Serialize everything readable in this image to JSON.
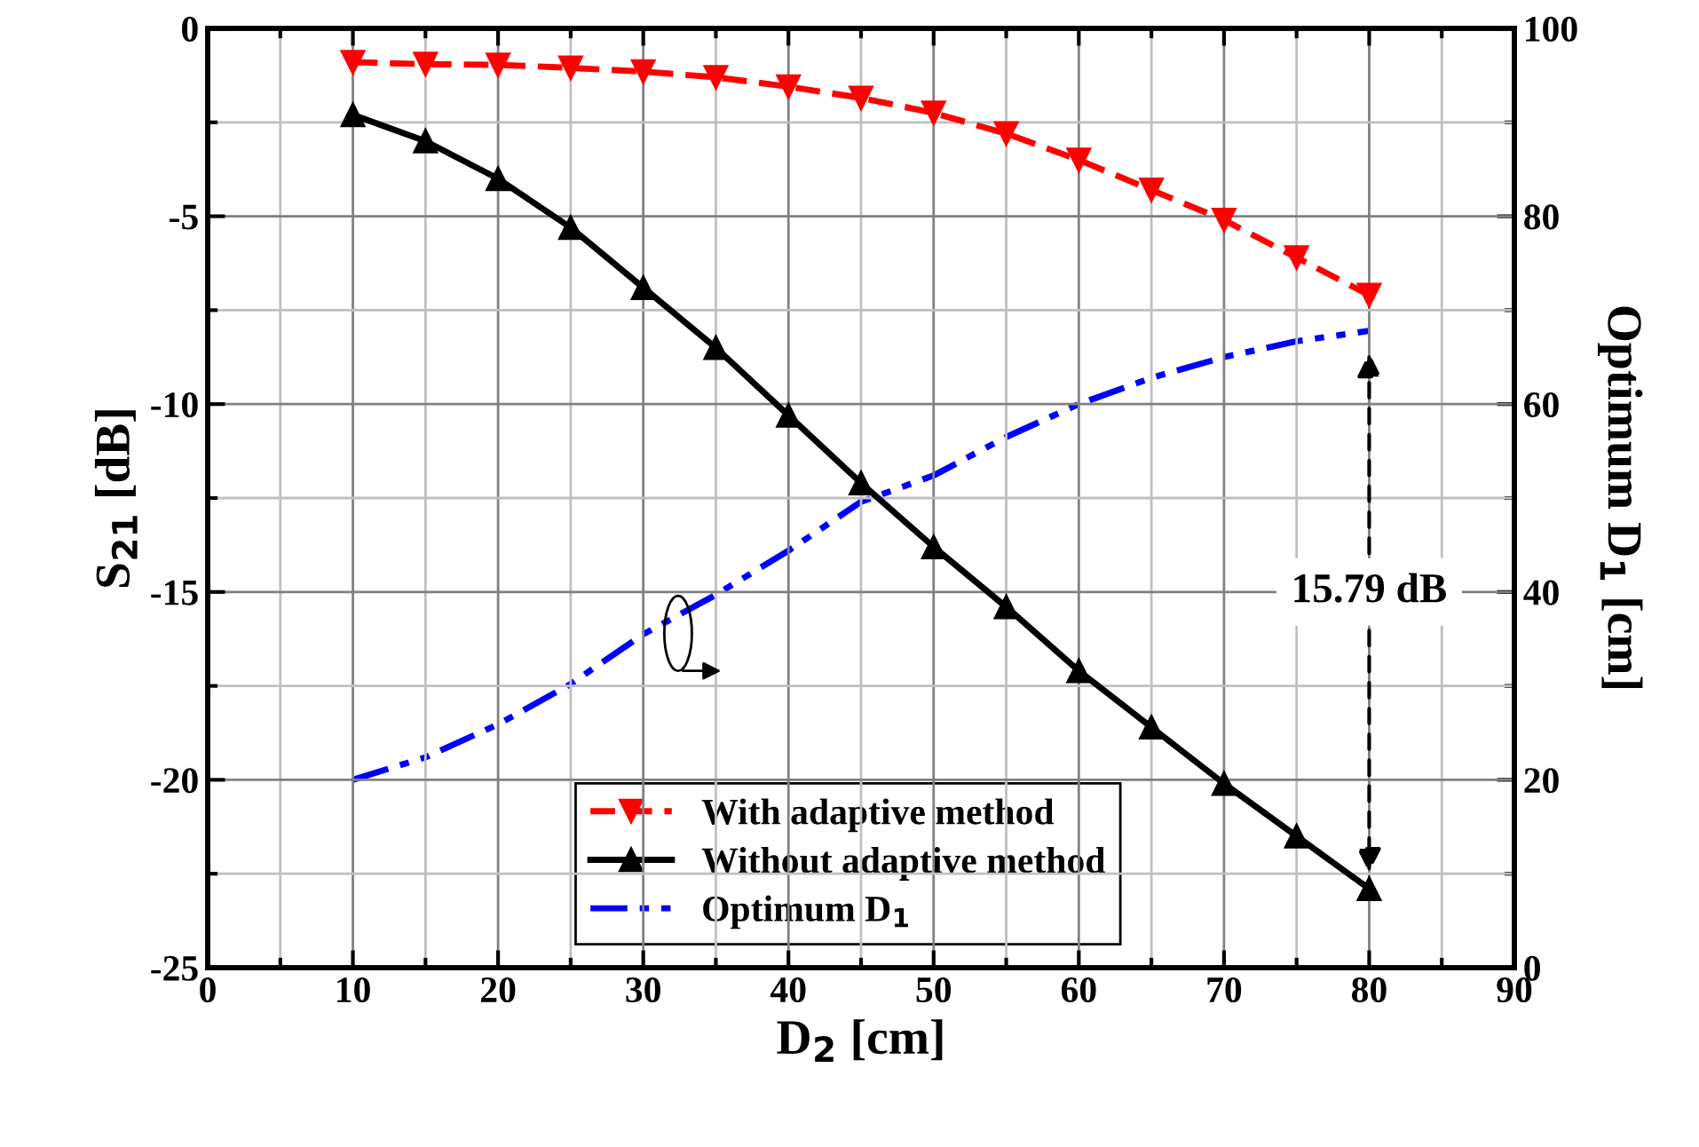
{
  "chart_data": {
    "type": "line",
    "xlabel": "D$_{2}$ [cm]",
    "ylabel": "S$_{21}$ [dB]",
    "y2label": "Optimum D$_{1}$ [cm]",
    "x": [
      10,
      15,
      20,
      25,
      30,
      35,
      40,
      45,
      50,
      55,
      60,
      65,
      70,
      75,
      80
    ],
    "series": [
      {
        "name": "With adaptive method",
        "color": "#ff0000",
        "marker": "triangle_down",
        "line_style": "dashed",
        "values": [
          -0.9,
          -0.95,
          -0.97,
          -1.05,
          -1.15,
          -1.3,
          -1.55,
          -1.85,
          -2.25,
          -2.8,
          -3.5,
          -4.3,
          -5.1,
          -6.1,
          -7.1
        ]
      },
      {
        "name": "Without adaptive method",
        "color": "#000000",
        "marker": "triangle",
        "line_style": "solid",
        "values": [
          -2.3,
          -3.0,
          -4.0,
          -5.3,
          -6.9,
          -8.5,
          -10.3,
          -12.1,
          -13.8,
          -15.4,
          -17.1,
          -18.6,
          -20.1,
          -21.5,
          -22.9
        ]
      },
      {
        "name": "Optimum D$_{1}$",
        "color": "#0000ff",
        "marker": "none",
        "line_style": "dashdotdot",
        "axis": "y2",
        "values": [
          20,
          22.4,
          25.9,
          30.2,
          35.5,
          39.7,
          44.4,
          49.6,
          52.4,
          56.5,
          60.0,
          62.8,
          65.0,
          66.7,
          67.8
        ]
      }
    ],
    "xlim": [
      0,
      90
    ],
    "xticks": [
      0,
      10,
      20,
      30,
      40,
      50,
      60,
      70,
      80,
      90
    ],
    "ylim": [
      -25,
      0
    ],
    "yticks": [
      -25,
      -20,
      -15,
      -10,
      -5,
      0
    ],
    "y2lim": [
      0,
      100
    ],
    "y2ticks": [
      0,
      20,
      40,
      60,
      80,
      100
    ],
    "annotations": [
      "15.79 dB"
    ],
    "grid": true,
    "legend": "bottom"
  }
}
